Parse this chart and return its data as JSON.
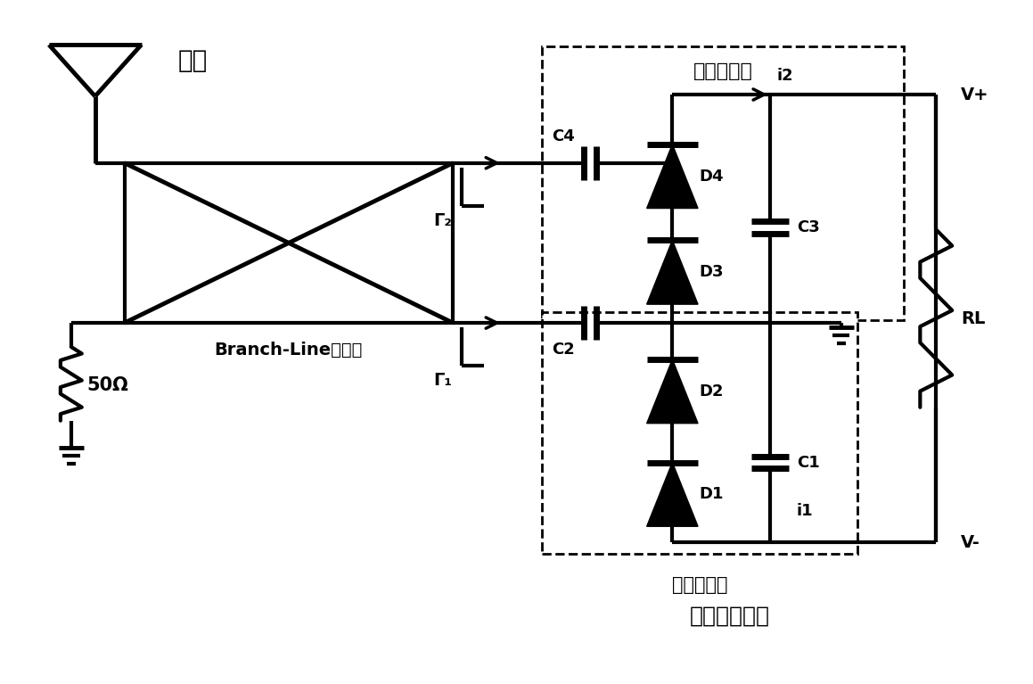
{
  "title": "电荷泵整流器",
  "bg_color": "#ffffff",
  "line_color": "#000000",
  "lw": 3.0,
  "lw2": 2.0,
  "text_antenna": "天线",
  "text_coupler": "Branch-Line耦合器",
  "text_50ohm": "50Ω",
  "text_rectifier": "电荷泵整流器",
  "text_doubler1": "第一倍压器",
  "text_doubler2": "第二倍压器",
  "text_vplus": "V+",
  "text_vminus": "V-",
  "text_RL": "RL",
  "text_C1": "C1",
  "text_C2": "C2",
  "text_C3": "C3",
  "text_C4": "C4",
  "text_D1": "D1",
  "text_D2": "D2",
  "text_D3": "D3",
  "text_D4": "D4",
  "text_i1": "i1",
  "text_i2": "i2",
  "text_gamma1": "Γ₁",
  "text_gamma2": "Γ₂"
}
